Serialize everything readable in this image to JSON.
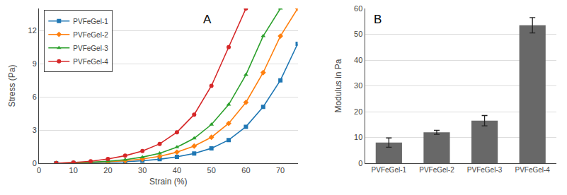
{
  "chart_data": [
    {
      "type": "line",
      "title": "A",
      "xlabel": "Strain (%)",
      "ylabel": "Stress (Pa)",
      "xlim": [
        0,
        75
      ],
      "ylim": [
        0,
        14
      ],
      "xticks": [
        0,
        10,
        20,
        30,
        40,
        50,
        60,
        70
      ],
      "yticks": [
        0,
        3,
        6,
        9,
        12
      ],
      "grid": true,
      "legend": "upper left",
      "series": [
        {
          "name": "PVFeGel-1",
          "marker": "square",
          "x": [
            5,
            10,
            15,
            20,
            25,
            30,
            35,
            40,
            45,
            50,
            55,
            60,
            65,
            70,
            75
          ],
          "values": [
            0.0,
            0.02,
            0.04,
            0.08,
            0.13,
            0.22,
            0.36,
            0.58,
            0.88,
            1.35,
            2.1,
            3.3,
            5.1,
            7.5,
            10.8
          ]
        },
        {
          "name": "PVFeGel-2",
          "marker": "diamond",
          "x": [
            5,
            10,
            15,
            20,
            25,
            30,
            35,
            40,
            45,
            50,
            55,
            60,
            65,
            70,
            75
          ],
          "values": [
            0.0,
            0.03,
            0.07,
            0.13,
            0.22,
            0.38,
            0.62,
            1.0,
            1.55,
            2.35,
            3.6,
            5.5,
            8.2,
            11.5,
            14.0
          ]
        },
        {
          "name": "PVFeGel-3",
          "marker": "triangle-up",
          "x": [
            5,
            10,
            15,
            20,
            25,
            30,
            35,
            40,
            45,
            50,
            55,
            60,
            65,
            70
          ],
          "values": [
            0.0,
            0.04,
            0.1,
            0.18,
            0.32,
            0.55,
            0.9,
            1.45,
            2.25,
            3.5,
            5.3,
            8.0,
            11.5,
            14.0
          ]
        },
        {
          "name": "PVFeGel-4",
          "marker": "circle",
          "x": [
            5,
            10,
            15,
            20,
            25,
            30,
            35,
            40,
            45,
            50,
            55,
            60
          ],
          "values": [
            0.0,
            0.06,
            0.18,
            0.38,
            0.68,
            1.1,
            1.75,
            2.8,
            4.4,
            7.0,
            10.5,
            14.0
          ]
        }
      ]
    },
    {
      "type": "bar",
      "title": "B",
      "ylabel": "Modulus in Pa",
      "categories": [
        "PVFeGel-1",
        "PVFeGel-2",
        "PVFeGel-3",
        "PVFeGel-4"
      ],
      "values": [
        8.0,
        12.0,
        16.5,
        53.5
      ],
      "errors": [
        1.8,
        0.8,
        2.0,
        3.0
      ],
      "color": "#686868",
      "ylim": [
        0,
        60
      ],
      "yticks": [
        0,
        10,
        20,
        30,
        40,
        50,
        60
      ],
      "grid": true
    }
  ]
}
